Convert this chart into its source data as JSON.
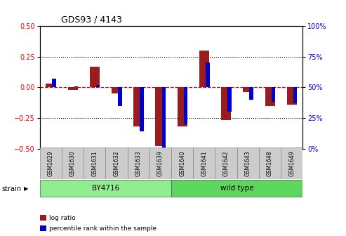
{
  "title": "GDS93 / 4143",
  "samples": [
    "GSM1629",
    "GSM1630",
    "GSM1631",
    "GSM1632",
    "GSM1633",
    "GSM1639",
    "GSM1640",
    "GSM1641",
    "GSM1642",
    "GSM1643",
    "GSM1648",
    "GSM1649"
  ],
  "log_ratio": [
    0.03,
    -0.02,
    0.17,
    -0.05,
    -0.32,
    -0.48,
    -0.32,
    0.3,
    -0.27,
    -0.04,
    -0.15,
    -0.14
  ],
  "percentile_rank": [
    57,
    51,
    52,
    35,
    14,
    1,
    20,
    70,
    30,
    40,
    38,
    37
  ],
  "strain_groups": [
    {
      "label": "BY4716",
      "start": 0,
      "end": 6,
      "color": "#90EE90"
    },
    {
      "label": "wild type",
      "start": 6,
      "end": 12,
      "color": "#5CD65C"
    }
  ],
  "log_ratio_color": "#9B1C1C",
  "percentile_color": "#0000CC",
  "ylim_left": [
    -0.5,
    0.5
  ],
  "ylim_right": [
    0,
    100
  ],
  "yticks_left": [
    -0.5,
    -0.25,
    0,
    0.25,
    0.5
  ],
  "yticks_right": [
    0,
    25,
    50,
    75,
    100
  ],
  "zero_line_color": "#CC0000",
  "bg_color": "#ffffff",
  "strain_label": "strain",
  "legend_items": [
    {
      "label": "log ratio",
      "color": "#9B1C1C"
    },
    {
      "label": "percentile rank within the sample",
      "color": "#0000CC"
    }
  ]
}
